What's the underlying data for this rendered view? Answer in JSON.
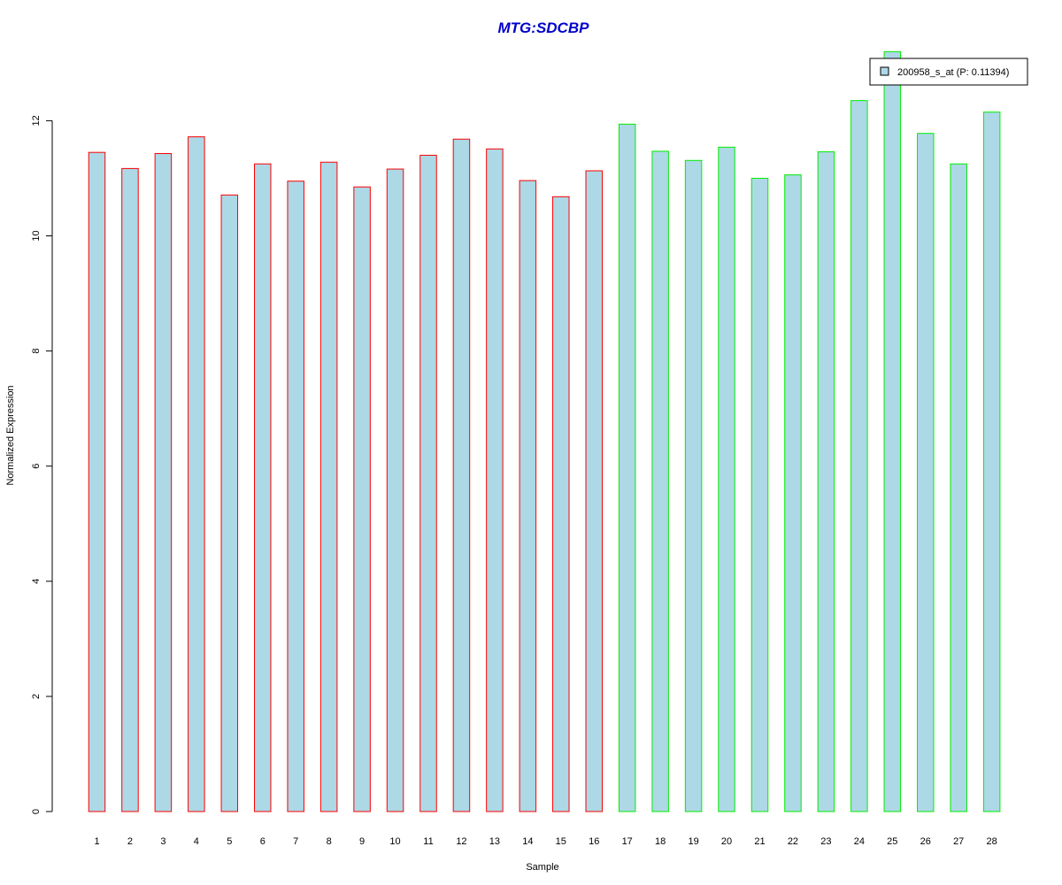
{
  "chart_data": {
    "type": "bar",
    "title": "MTG:SDCBP",
    "xlabel": "Sample",
    "ylabel": "Normalized Expression",
    "categories": [
      "1",
      "2",
      "3",
      "4",
      "5",
      "6",
      "7",
      "8",
      "9",
      "10",
      "11",
      "12",
      "13",
      "14",
      "15",
      "16",
      "17",
      "18",
      "19",
      "20",
      "21",
      "22",
      "23",
      "24",
      "25",
      "26",
      "27",
      "28"
    ],
    "values": [
      11.45,
      11.17,
      11.43,
      11.72,
      10.71,
      11.25,
      10.95,
      11.28,
      10.85,
      11.16,
      11.4,
      11.68,
      11.51,
      10.96,
      10.68,
      11.13,
      11.94,
      11.47,
      11.31,
      11.54,
      11.0,
      11.06,
      11.46,
      12.35,
      13.2,
      11.78,
      11.25,
      12.15
    ],
    "yticks": [
      0,
      2,
      4,
      6,
      8,
      10,
      12
    ],
    "ylim": [
      0,
      13.2
    ],
    "group_borders": [
      "#ff0000",
      "#ff0000",
      "#ff0000",
      "#ff0000",
      "#ff0000",
      "#ff0000",
      "#ff0000",
      "#ff0000",
      "#ff0000",
      "#ff0000",
      "#ff0000",
      "#ff0000",
      "#ff0000",
      "#ff0000",
      "#ff0000",
      "#ff0000",
      "#00ee00",
      "#00ee00",
      "#00ee00",
      "#00ee00",
      "#00ee00",
      "#00ee00",
      "#00ee00",
      "#00ee00",
      "#00ee00",
      "#00ee00",
      "#00ee00",
      "#00ee00"
    ],
    "bar_fill": "#add8e6",
    "title_color": "#0000cc",
    "legend": {
      "placement": "top-right",
      "entries": [
        {
          "label": "200958_s_at (P: 0.11394)",
          "color": "#add8e6"
        }
      ]
    },
    "grid": false
  }
}
